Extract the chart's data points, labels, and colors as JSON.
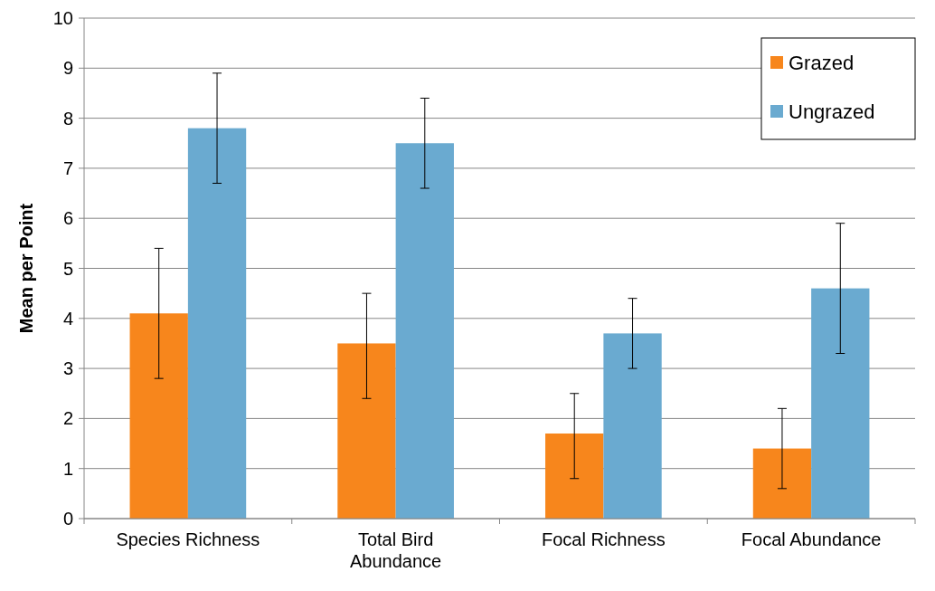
{
  "chart_data": {
    "type": "bar",
    "ylabel": "Mean per Point",
    "categories": [
      "Species Richness",
      "Total Bird Abundance",
      "Focal Richness",
      "Focal Abundance"
    ],
    "series": [
      {
        "name": "Grazed",
        "color": "#f7861c",
        "values": [
          4.1,
          3.5,
          1.7,
          1.4
        ],
        "errors": [
          [
            2.8,
            5.4
          ],
          [
            2.4,
            4.5
          ],
          [
            0.8,
            2.5
          ],
          [
            0.6,
            2.2
          ]
        ]
      },
      {
        "name": "Ungrazed",
        "color": "#6aaad0",
        "values": [
          7.8,
          7.5,
          3.7,
          4.6
        ],
        "errors": [
          [
            6.7,
            8.9
          ],
          [
            6.6,
            8.4
          ],
          [
            3.0,
            4.4
          ],
          [
            3.3,
            5.9
          ]
        ]
      }
    ],
    "ylim": [
      0,
      10
    ],
    "yticks": [
      0,
      1,
      2,
      3,
      4,
      5,
      6,
      7,
      8,
      9,
      10
    ],
    "grid": "y",
    "legend": "top right"
  }
}
